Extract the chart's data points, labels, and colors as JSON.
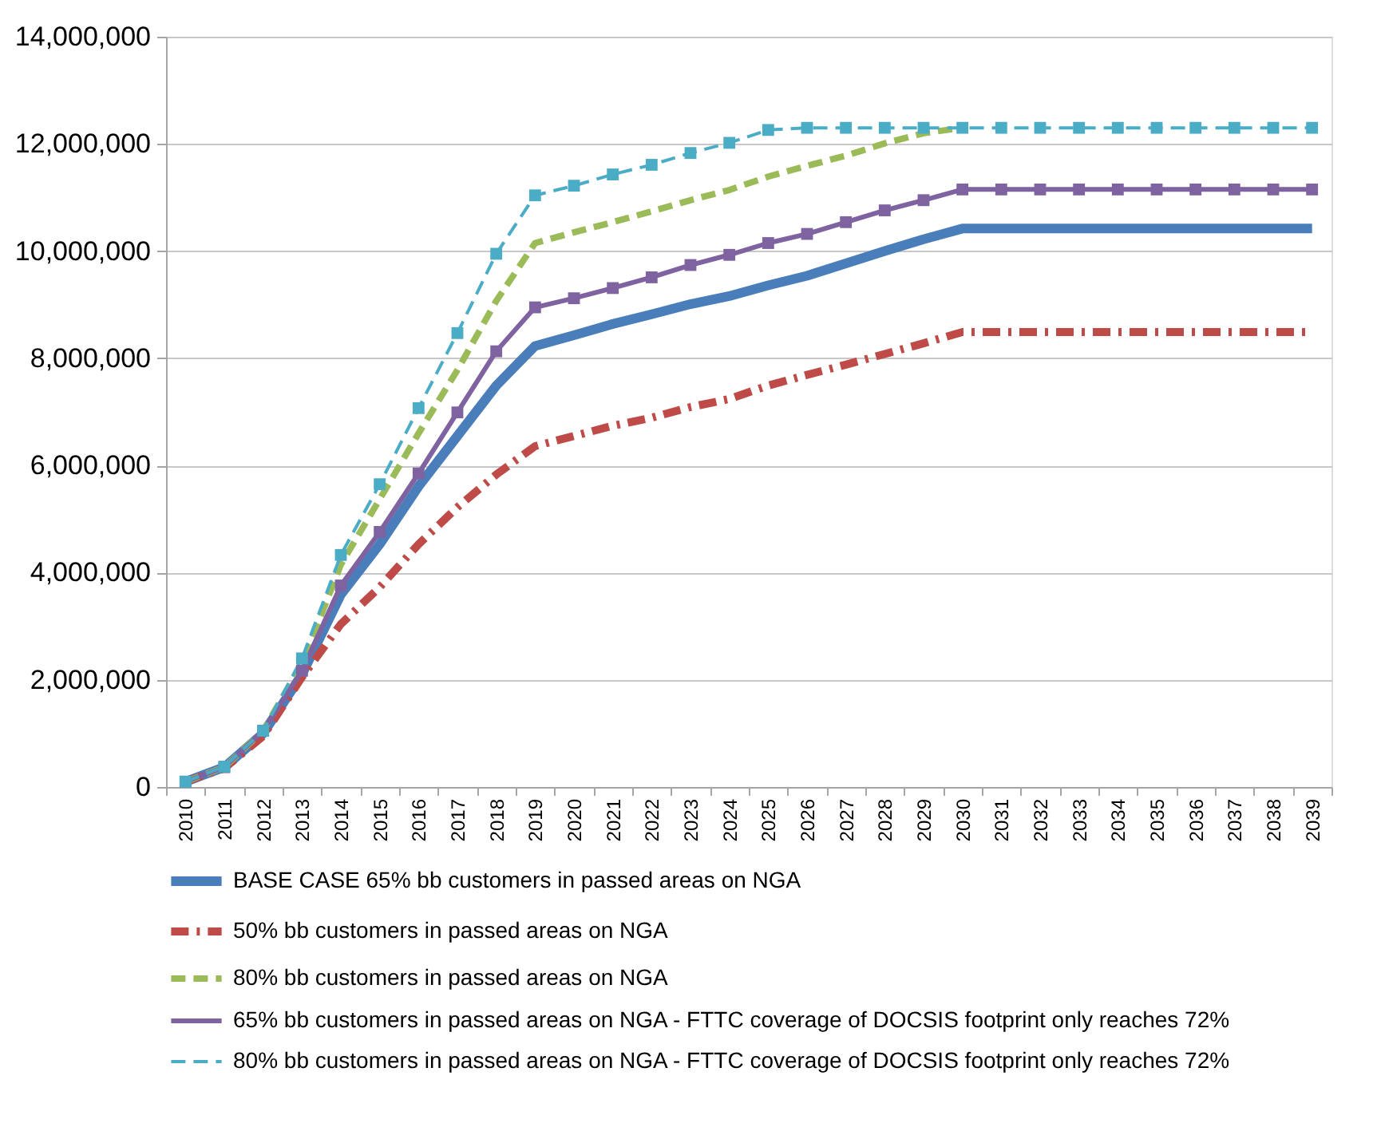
{
  "chart_data": {
    "type": "line",
    "categories": [
      "2010",
      "2011",
      "2012",
      "2013",
      "2014",
      "2015",
      "2016",
      "2017",
      "2018",
      "2019",
      "2020",
      "2021",
      "2022",
      "2023",
      "2024",
      "2025",
      "2026",
      "2027",
      "2028",
      "2029",
      "2030",
      "2031",
      "2032",
      "2033",
      "2034",
      "2035",
      "2036",
      "2037",
      "2038",
      "2039"
    ],
    "series": [
      {
        "name": "BASE CASE 65% bb customers in passed areas on NGA",
        "color": "#4a7ebb",
        "line_style": "solid",
        "marker": "none",
        "values": [
          100000,
          370000,
          1000000,
          2100000,
          3590000,
          4530000,
          5610000,
          6550000,
          7490000,
          8230000,
          8430000,
          8640000,
          8820000,
          9010000,
          9160000,
          9360000,
          9540000,
          9770000,
          10000000,
          10220000,
          10420000,
          10420000,
          10420000,
          10420000,
          10420000,
          10420000,
          10420000,
          10420000,
          10420000,
          10420000
        ]
      },
      {
        "name": "50% bb customers in passed areas on NGA",
        "color": "#be4b48",
        "line_style": "dashdot",
        "marker": "none",
        "values": [
          100000,
          350000,
          950000,
          2050000,
          3040000,
          3730000,
          4530000,
          5220000,
          5830000,
          6360000,
          6550000,
          6740000,
          6890000,
          7090000,
          7240000,
          7490000,
          7690000,
          7880000,
          8080000,
          8280000,
          8490000,
          8490000,
          8490000,
          8490000,
          8490000,
          8490000,
          8490000,
          8490000,
          8490000,
          8490000
        ]
      },
      {
        "name": "80% bb customers in passed areas on NGA",
        "color": "#9bbb59",
        "line_style": "dashed",
        "marker": "none",
        "values": [
          100000,
          370000,
          1050000,
          2300000,
          4150000,
          5370000,
          6600000,
          7780000,
          9070000,
          10150000,
          10350000,
          10540000,
          10740000,
          10950000,
          11140000,
          11390000,
          11590000,
          11780000,
          12010000,
          12200000,
          12300000,
          null,
          null,
          null,
          null,
          null,
          null,
          null,
          null,
          null
        ]
      },
      {
        "name": "65% bb customers in passed areas on NGA - FTTC coverage of DOCSIS footprint only reaches 72%",
        "color": "#7f63a1",
        "line_style": "solid",
        "marker": "square",
        "values": [
          100000,
          370000,
          1050000,
          2170000,
          3760000,
          4760000,
          5850000,
          6990000,
          8130000,
          8950000,
          9120000,
          9310000,
          9510000,
          9740000,
          9930000,
          10150000,
          10320000,
          10540000,
          10760000,
          10950000,
          11150000,
          11150000,
          11150000,
          11150000,
          11150000,
          11150000,
          11150000,
          11150000,
          11150000,
          11150000
        ]
      },
      {
        "name": "80% bb customers in passed areas on NGA - FTTC coverage of DOCSIS footprint only reaches 72%",
        "color": "#4bacc6",
        "line_style": "dashed",
        "marker": "square",
        "values": [
          100000,
          380000,
          1050000,
          2400000,
          4330000,
          5650000,
          7070000,
          8470000,
          9950000,
          11040000,
          11220000,
          11430000,
          11610000,
          11830000,
          12020000,
          12260000,
          12300000,
          12300000,
          12300000,
          12300000,
          12300000,
          12300000,
          12300000,
          12300000,
          12300000,
          12300000,
          12300000,
          12300000,
          12300000,
          12300000
        ]
      }
    ],
    "ylim": [
      0,
      14000000
    ],
    "yticks": [
      0,
      {
        "value": 2000000,
        "label": "2,000,000"
      },
      {
        "value": 4000000,
        "label": "4,000,000"
      },
      {
        "value": 6000000,
        "label": "6,000,000"
      },
      {
        "value": 8000000,
        "label": "8,000,000"
      },
      {
        "value": 10000000,
        "label": "10,000,000"
      },
      {
        "value": 12000000,
        "label": "12,000,000"
      },
      {
        "value": 14000000,
        "label": "14,000,000"
      }
    ],
    "grid": "y",
    "legend": "bottom"
  }
}
